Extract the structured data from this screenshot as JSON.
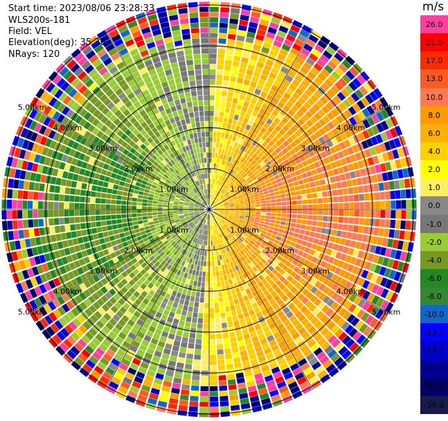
{
  "header": {
    "start_time": "Start time: 2023/08/06 23:28:33",
    "instrument": "WLS200s-181",
    "field": "Field: VEL",
    "elevation": "Elevation(deg): 35.30",
    "nrays": "NRays: 120"
  },
  "colorbar": {
    "unit": "m/s",
    "labels": [
      "26.0",
      "21.0",
      "17.0",
      "13.0",
      "10.0",
      "8.0",
      "6.0",
      "4.0",
      "2.0",
      "1.0",
      "0.0",
      "-1.0",
      "-2.0",
      "-4.0",
      "-6.0",
      "-8.0",
      "-10.0",
      "-13.0",
      "-17.0",
      "-21.0",
      "-26.0",
      "-30.0"
    ],
    "colors": [
      "#ff3fa0",
      "#ff0000",
      "#ff2a00",
      "#ff5a20",
      "#ff7a50",
      "#ff9a00",
      "#ffb000",
      "#ffd000",
      "#ffff00",
      "#ffee60",
      "#888888",
      "#777777",
      "#99cc33",
      "#779922",
      "#228822",
      "#338833",
      "#1166cc",
      "#0000ff",
      "#0000cc",
      "#000099",
      "#000066",
      "#1a1a4a"
    ]
  },
  "chart_data": {
    "type": "heatmap",
    "projection": "polar PPI",
    "field": "VEL",
    "units": "m/s",
    "nrays": 120,
    "elevation_deg": 35.3,
    "range_rings_km": [
      1.0,
      2.0,
      3.0,
      4.0,
      5.0
    ],
    "range_ring_labels": [
      "1.00km",
      "2.00km",
      "3.00km",
      "4.00km",
      "5.00km"
    ],
    "max_range_km": 5.6,
    "spoke_angles_deg": [
      0,
      30,
      60,
      90,
      120,
      150
    ],
    "pattern": "near-field: receding (positive, 2 to 10 m/s) toward east, approaching (negative, -2 to -8 m/s) toward west; outer ranges beyond ~4 km noisy across full colour scale"
  }
}
